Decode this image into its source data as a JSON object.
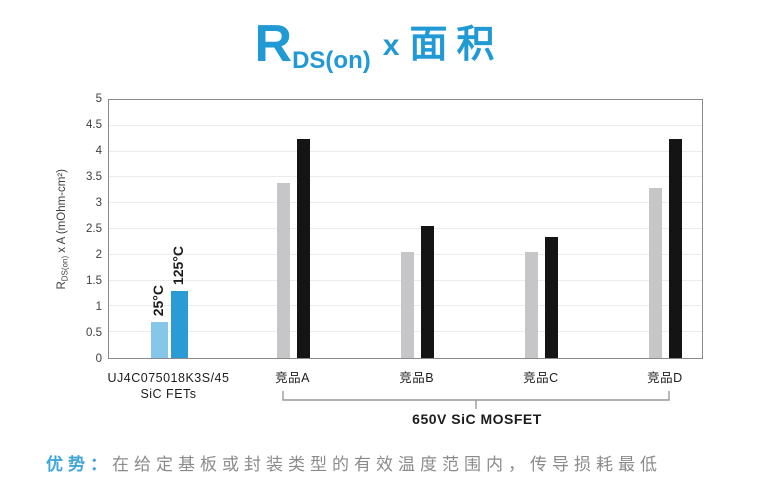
{
  "title": {
    "r": "R",
    "sub": "DS(on)",
    "times": "x",
    "area": "面积"
  },
  "chart_data": {
    "type": "bar",
    "title": "RDS(on) x 面积",
    "ylabel_r": "R",
    "ylabel_sub": "DS(on)",
    "ylabel_rest": " x A (mOhm-cm²)",
    "ylim": [
      0,
      5
    ],
    "ytick_step": 0.5,
    "yticks": [
      "5",
      "4.5",
      "4",
      "3.5",
      "3",
      "2.5",
      "2",
      "1.5",
      "1",
      "0.5",
      "0"
    ],
    "grid": true,
    "legend_position": "rotated labels above first group bars",
    "categories": [
      [
        "UJ4C075018K3S/45",
        "SiC FETs"
      ],
      [
        "竞品A"
      ],
      [
        "竞品B"
      ],
      [
        "竞品C"
      ],
      [
        "竞品D"
      ]
    ],
    "series": [
      {
        "name": "25°C",
        "values": [
          0.7,
          3.4,
          2.05,
          2.05,
          3.3
        ]
      },
      {
        "name": "125°C",
        "values": [
          1.3,
          4.25,
          2.55,
          2.35,
          4.25
        ]
      }
    ],
    "highlight_group": 0,
    "bracket": {
      "label": "650V SiC MOSFET",
      "from_group": 1,
      "to_group": 4
    }
  },
  "footer": {
    "advantage_label": "优势：",
    "advantage_text": "在给定基板或封装类型的有效温度范围内，传导损耗最低"
  },
  "colors": {
    "accent_blue": "#2199d5",
    "bar_25_highlight": "#85c6e9",
    "bar_125_highlight": "#2b9bd5",
    "bar_25_default": "#c6c6c8",
    "bar_125_default": "#141414",
    "footer_text_gray": "#8b8b8b",
    "footer_label_blue": "#41a5d8",
    "axis_border": "#8a8a8a",
    "bracket_gray": "#999999"
  }
}
